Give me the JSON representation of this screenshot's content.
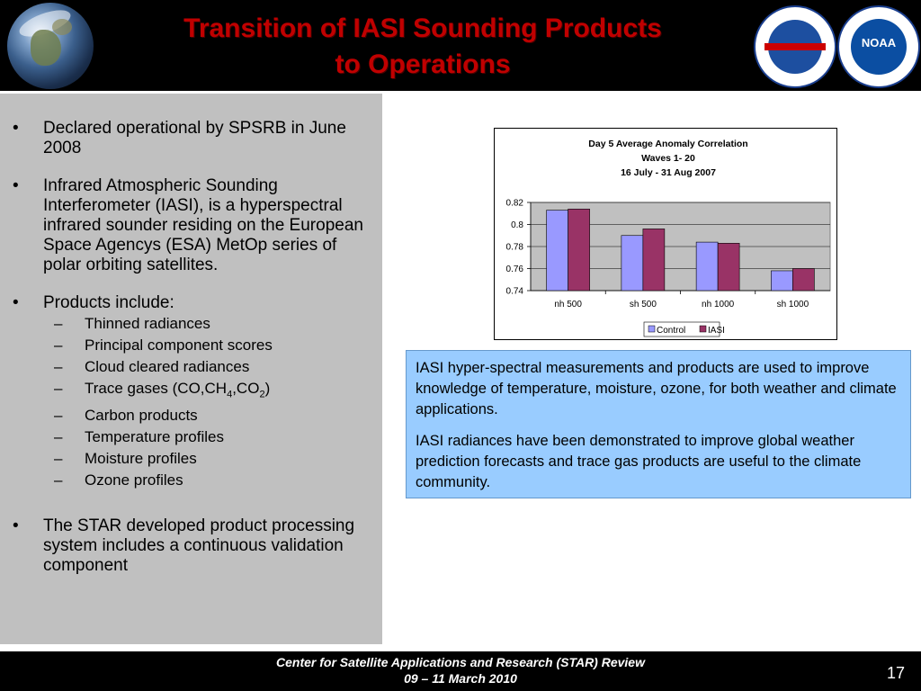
{
  "header": {
    "title_line1": "Transition of IASI Sounding Products",
    "title_line2": "to Operations",
    "logo_noaa_text": "NOAA"
  },
  "bullets": [
    {
      "text": "Declared operational by SPSRB in June 2008"
    },
    {
      "text": "Infrared Atmospheric Sounding Interferometer (IASI), is a hyperspectral infrared sounder residing on the European Space Agencys (ESA) MetOp series of polar orbiting satellites."
    },
    {
      "text": "Products include:"
    },
    {
      "text": "The STAR developed product processing system includes a continuous validation component"
    }
  ],
  "products": [
    "Thinned radiances",
    "Principal component scores",
    "Cloud cleared radiances",
    "Trace gases (CO,CH4,CO2)",
    "Carbon products",
    "Temperature profiles",
    "Moisture profiles",
    "Ozone profiles"
  ],
  "bullet_symbol": "•",
  "dash_symbol": "–",
  "info_box": {
    "p1": "IASI hyper-spectral measurements and products are used to improve knowledge of temperature, moisture, ozone, for both weather and climate applications.",
    "p2": " IASI radiances have been demonstrated to improve global weather prediction forecasts and trace gas products are useful to the climate community."
  },
  "footer": {
    "line1": "Center for Satellite Applications and Research (STAR) Review",
    "line2": "09 – 11 March 2010",
    "page_number": "17"
  },
  "chart_data": {
    "type": "bar",
    "title": [
      "Day 5 Average Anomaly Correlation",
      "Waves 1- 20",
      "16 July - 31 Aug 2007"
    ],
    "categories": [
      "nh 500",
      "sh 500",
      "nh 1000",
      "sh 1000"
    ],
    "series": [
      {
        "name": "Control",
        "values": [
          0.813,
          0.79,
          0.784,
          0.758
        ],
        "color": "#9999ff"
      },
      {
        "name": "IASI",
        "values": [
          0.814,
          0.796,
          0.783,
          0.76
        ],
        "color": "#993366"
      }
    ],
    "ylim": [
      0.74,
      0.82
    ],
    "yticks": [
      "0.74",
      "0.76",
      "0.78",
      "0.8",
      "0.82"
    ],
    "plot_background": "#c0c0c0",
    "grid": true,
    "legend": "bottom"
  }
}
